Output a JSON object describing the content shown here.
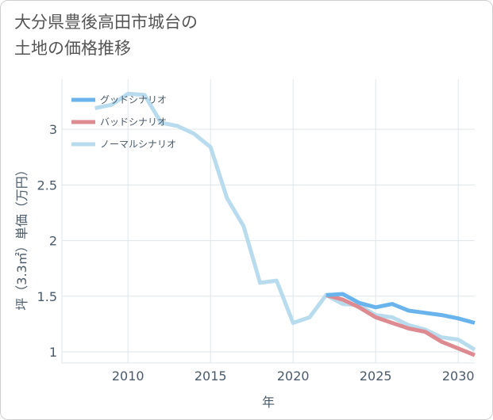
{
  "title": {
    "line1": "大分県豊後高田市城台の",
    "line2": "土地の価格推移"
  },
  "chart_data": {
    "type": "line",
    "xlabel": "年",
    "ylabel": "坪（3.3㎡）単価（万円）",
    "xlim": [
      2006,
      2031
    ],
    "ylim": [
      0.9,
      3.45
    ],
    "xticks": [
      2010,
      2015,
      2020,
      2025,
      2030
    ],
    "xtick_labels": [
      "2010",
      "2015",
      "2020",
      "2025",
      "2030"
    ],
    "yticks": [
      1,
      1.5,
      2,
      2.5,
      3
    ],
    "ytick_labels": [
      "1",
      "1.5",
      "2",
      "2.5",
      "3"
    ],
    "legend_position": "top-left",
    "series": [
      {
        "name": "グッドシナリオ",
        "color": "#6ab4ee",
        "x": [
          2022,
          2023,
          2024,
          2025,
          2026,
          2027,
          2028,
          2029,
          2030,
          2031
        ],
        "values": [
          1.51,
          1.52,
          1.44,
          1.4,
          1.43,
          1.37,
          1.35,
          1.33,
          1.3,
          1.26
        ]
      },
      {
        "name": "バッドシナリオ",
        "color": "#dd8a90",
        "x": [
          2022,
          2023,
          2024,
          2025,
          2026,
          2027,
          2028,
          2029,
          2030,
          2031
        ],
        "values": [
          1.51,
          1.47,
          1.4,
          1.31,
          1.26,
          1.21,
          1.18,
          1.09,
          1.03,
          0.97
        ]
      },
      {
        "name": "ノーマルシナリオ",
        "color": "#b8dcee",
        "x": [
          2008,
          2009,
          2010,
          2011,
          2012,
          2013,
          2014,
          2015,
          2016,
          2017,
          2018,
          2019,
          2020,
          2021,
          2022,
          2023,
          2024,
          2025,
          2026,
          2027,
          2028,
          2029,
          2030,
          2031
        ],
        "values": [
          3.19,
          3.22,
          3.32,
          3.31,
          3.06,
          3.03,
          2.96,
          2.84,
          2.38,
          2.13,
          1.62,
          1.64,
          1.26,
          1.31,
          1.51,
          1.43,
          1.42,
          1.33,
          1.31,
          1.24,
          1.2,
          1.13,
          1.11,
          1.02
        ]
      }
    ]
  }
}
